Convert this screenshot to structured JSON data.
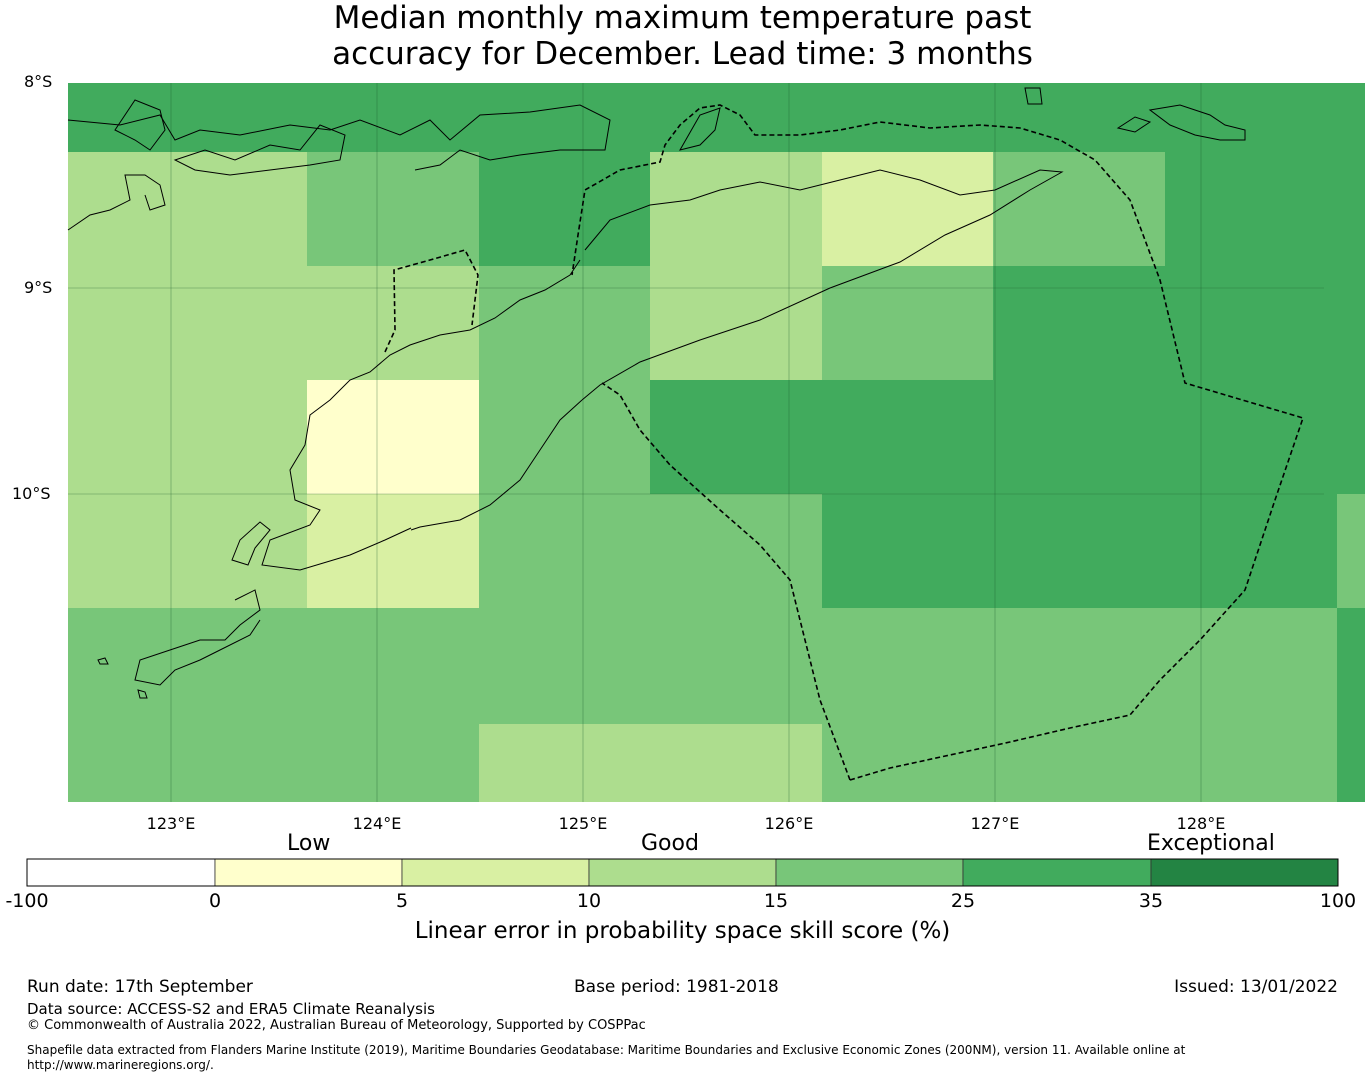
{
  "title": {
    "line1": "Median monthly maximum temperature past",
    "line2": "accuracy for December. Lead time: 3 months"
  },
  "map": {
    "lon_range": [
      122.5,
      128.6
    ],
    "lat_range": [
      -11.5,
      -8.0
    ],
    "lat_labels": [
      "8°S",
      "9°S",
      "10°S"
    ],
    "lon_labels": [
      "123°E",
      "124°E",
      "125°E",
      "126°E",
      "127°E",
      "128°E"
    ],
    "cells": [
      {
        "rows": [
          0,
          0.34
        ],
        "cols": [
          [
            0,
            1324,
            5
          ]
        ]
      },
      {
        "band": 1,
        "cols": [
          [
            0,
            239,
            3
          ],
          [
            239,
            411,
            4
          ],
          [
            411,
            582,
            5
          ],
          [
            582,
            754,
            3
          ],
          [
            754,
            925,
            2
          ],
          [
            925,
            1097,
            4
          ],
          [
            1097,
            1324,
            5
          ]
        ]
      },
      {
        "band": 2,
        "cols": [
          [
            0,
            411,
            3
          ],
          [
            411,
            582,
            4
          ],
          [
            582,
            754,
            3
          ],
          [
            754,
            925,
            4
          ],
          [
            925,
            1324,
            5
          ]
        ]
      },
      {
        "band": 3,
        "cols": [
          [
            0,
            239,
            3
          ],
          [
            239,
            411,
            1
          ],
          [
            411,
            582,
            4
          ],
          [
            582,
            1324,
            5
          ]
        ]
      },
      {
        "band": 4,
        "cols": [
          [
            0,
            239,
            3
          ],
          [
            239,
            411,
            2
          ],
          [
            411,
            754,
            4
          ],
          [
            754,
            1269,
            5
          ],
          [
            1269,
            1324,
            4
          ]
        ]
      },
      {
        "band": 5,
        "cols": [
          [
            0,
            1269,
            4
          ],
          [
            1269,
            1324,
            5
          ]
        ]
      },
      {
        "band": 6,
        "cols": [
          [
            0,
            411,
            4
          ],
          [
            411,
            754,
            3
          ],
          [
            754,
            1269,
            4
          ],
          [
            1269,
            1324,
            5
          ]
        ]
      }
    ]
  },
  "colorbar": {
    "category_labels": [
      "Low",
      "Good",
      "Exceptional"
    ],
    "ticks": [
      "-100",
      "0",
      "5",
      "10",
      "15",
      "25",
      "35",
      "100"
    ],
    "colors": [
      "#ffffff",
      "#ffffcc",
      "#d9f0a3",
      "#addd8e",
      "#78c679",
      "#41ab5d",
      "#238443"
    ],
    "title": "Linear error in probability space skill score (%)"
  },
  "footer": {
    "run_date": "Run date: 17th September",
    "base_period": "Base period: 1981-2018",
    "issued": "Issued: 13/01/2022",
    "data_source": "Data source: ACCESS-S2 and ERA5 Climate Reanalysis",
    "copyright": "© Commonwealth of Australia 2022, Australian Bureau of Meteorology, Supported by COSPPac",
    "shapefile_line1": "Shapefile data extracted from Flanders Marine Institute (2019), Maritime Boundaries Geodatabase: Maritime Boundaries and Exclusive Economic Zones (200NM), version 11. Available online at",
    "shapefile_line2": "http://www.marineregions.org/."
  }
}
